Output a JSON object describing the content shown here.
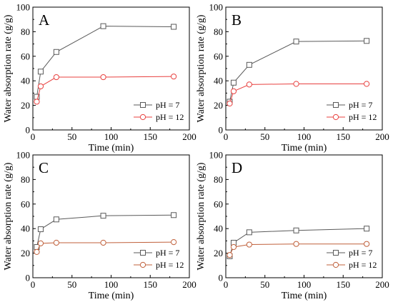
{
  "chart_data": [
    {
      "type": "line",
      "panel_label": "A",
      "xlabel": "Time (min)",
      "ylabel": "Water absorption rate (g/g)",
      "xlim": [
        0,
        200
      ],
      "ylim": [
        0,
        100
      ],
      "xticks": [
        "0",
        "50",
        "100",
        "150",
        "200"
      ],
      "yticks": [
        "0",
        "20",
        "40",
        "60",
        "80",
        "100"
      ],
      "legend_position": "bottom-right",
      "series": [
        {
          "name": "pH = 7",
          "color": "#5a5a5a",
          "marker": "square",
          "x": [
            5,
            10,
            30,
            90,
            180
          ],
          "y": [
            27,
            47.5,
            63.5,
            84.5,
            84.0
          ]
        },
        {
          "name": "pH = 12",
          "color": "#e8403f",
          "marker": "circle",
          "x": [
            5,
            10,
            30,
            90,
            180
          ],
          "y": [
            23,
            35.5,
            43.0,
            43.0,
            43.5
          ]
        }
      ]
    },
    {
      "type": "line",
      "panel_label": "B",
      "xlabel": "Time (min)",
      "ylabel": "Water absorption rate (g/g)",
      "xlim": [
        0,
        200
      ],
      "ylim": [
        0,
        100
      ],
      "xticks": [
        "0",
        "50",
        "100",
        "150",
        "200"
      ],
      "yticks": [
        "0",
        "20",
        "40",
        "60",
        "80",
        "100"
      ],
      "legend_position": "bottom-right",
      "series": [
        {
          "name": "pH = 7",
          "color": "#5a5a5a",
          "marker": "square",
          "x": [
            5,
            10,
            30,
            90,
            180
          ],
          "y": [
            23,
            38.5,
            53.0,
            72.0,
            72.5
          ]
        },
        {
          "name": "pH = 12",
          "color": "#e8403f",
          "marker": "circle",
          "x": [
            5,
            10,
            30,
            90,
            180
          ],
          "y": [
            21.5,
            31.5,
            37.0,
            37.5,
            37.5
          ]
        }
      ]
    },
    {
      "type": "line",
      "panel_label": "C",
      "xlabel": "Time (min)",
      "ylabel": "Water absorption rate (g/g)",
      "xlim": [
        0,
        200
      ],
      "ylim": [
        0,
        100
      ],
      "xticks": [
        "0",
        "50",
        "100",
        "150",
        "200"
      ],
      "yticks": [
        "0",
        "20",
        "40",
        "60",
        "80",
        "100"
      ],
      "legend_position": "bottom-right",
      "series": [
        {
          "name": "pH = 7",
          "color": "#5a5a5a",
          "marker": "square",
          "x": [
            5,
            10,
            30,
            90,
            180
          ],
          "y": [
            25,
            39.5,
            47.5,
            50.5,
            51.0
          ]
        },
        {
          "name": "pH = 12",
          "color": "#c0603b",
          "marker": "circle",
          "x": [
            5,
            10,
            30,
            90,
            180
          ],
          "y": [
            21,
            28.0,
            28.5,
            28.5,
            29.0
          ]
        }
      ]
    },
    {
      "type": "line",
      "panel_label": "D",
      "xlabel": "Time (min)",
      "ylabel": "Water absorption rate (g/g)",
      "xlim": [
        0,
        200
      ],
      "ylim": [
        0,
        100
      ],
      "xticks": [
        "0",
        "50",
        "100",
        "150",
        "200"
      ],
      "yticks": [
        "0",
        "20",
        "40",
        "60",
        "80",
        "100"
      ],
      "legend_position": "bottom-right",
      "series": [
        {
          "name": "pH = 7",
          "color": "#5a5a5a",
          "marker": "square",
          "x": [
            5,
            10,
            30,
            90,
            180
          ],
          "y": [
            17.5,
            28.5,
            37.0,
            38.5,
            40.0
          ]
        },
        {
          "name": "pH = 12",
          "color": "#c0603b",
          "marker": "circle",
          "x": [
            5,
            10,
            30,
            90,
            180
          ],
          "y": [
            18.5,
            25.0,
            27.0,
            27.5,
            27.5
          ]
        }
      ]
    }
  ]
}
